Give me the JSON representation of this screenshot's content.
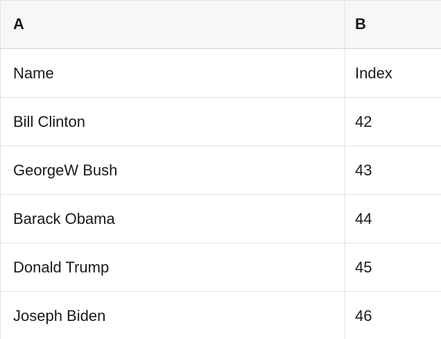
{
  "table": {
    "columns": [
      {
        "letter": "A"
      },
      {
        "letter": "B"
      }
    ],
    "rows": [
      {
        "a": "Name",
        "b": "Index"
      },
      {
        "a": "Bill Clinton",
        "b": "42"
      },
      {
        "a": "GeorgeW Bush",
        "b": "43"
      },
      {
        "a": "Barack Obama",
        "b": "44"
      },
      {
        "a": "Donald Trump",
        "b": "45"
      },
      {
        "a": "Joseph Biden",
        "b": "46"
      }
    ],
    "colors": {
      "header_bg": "#f7f7f7",
      "border": "#e2e2e2",
      "text": "#1a1a1a"
    }
  }
}
